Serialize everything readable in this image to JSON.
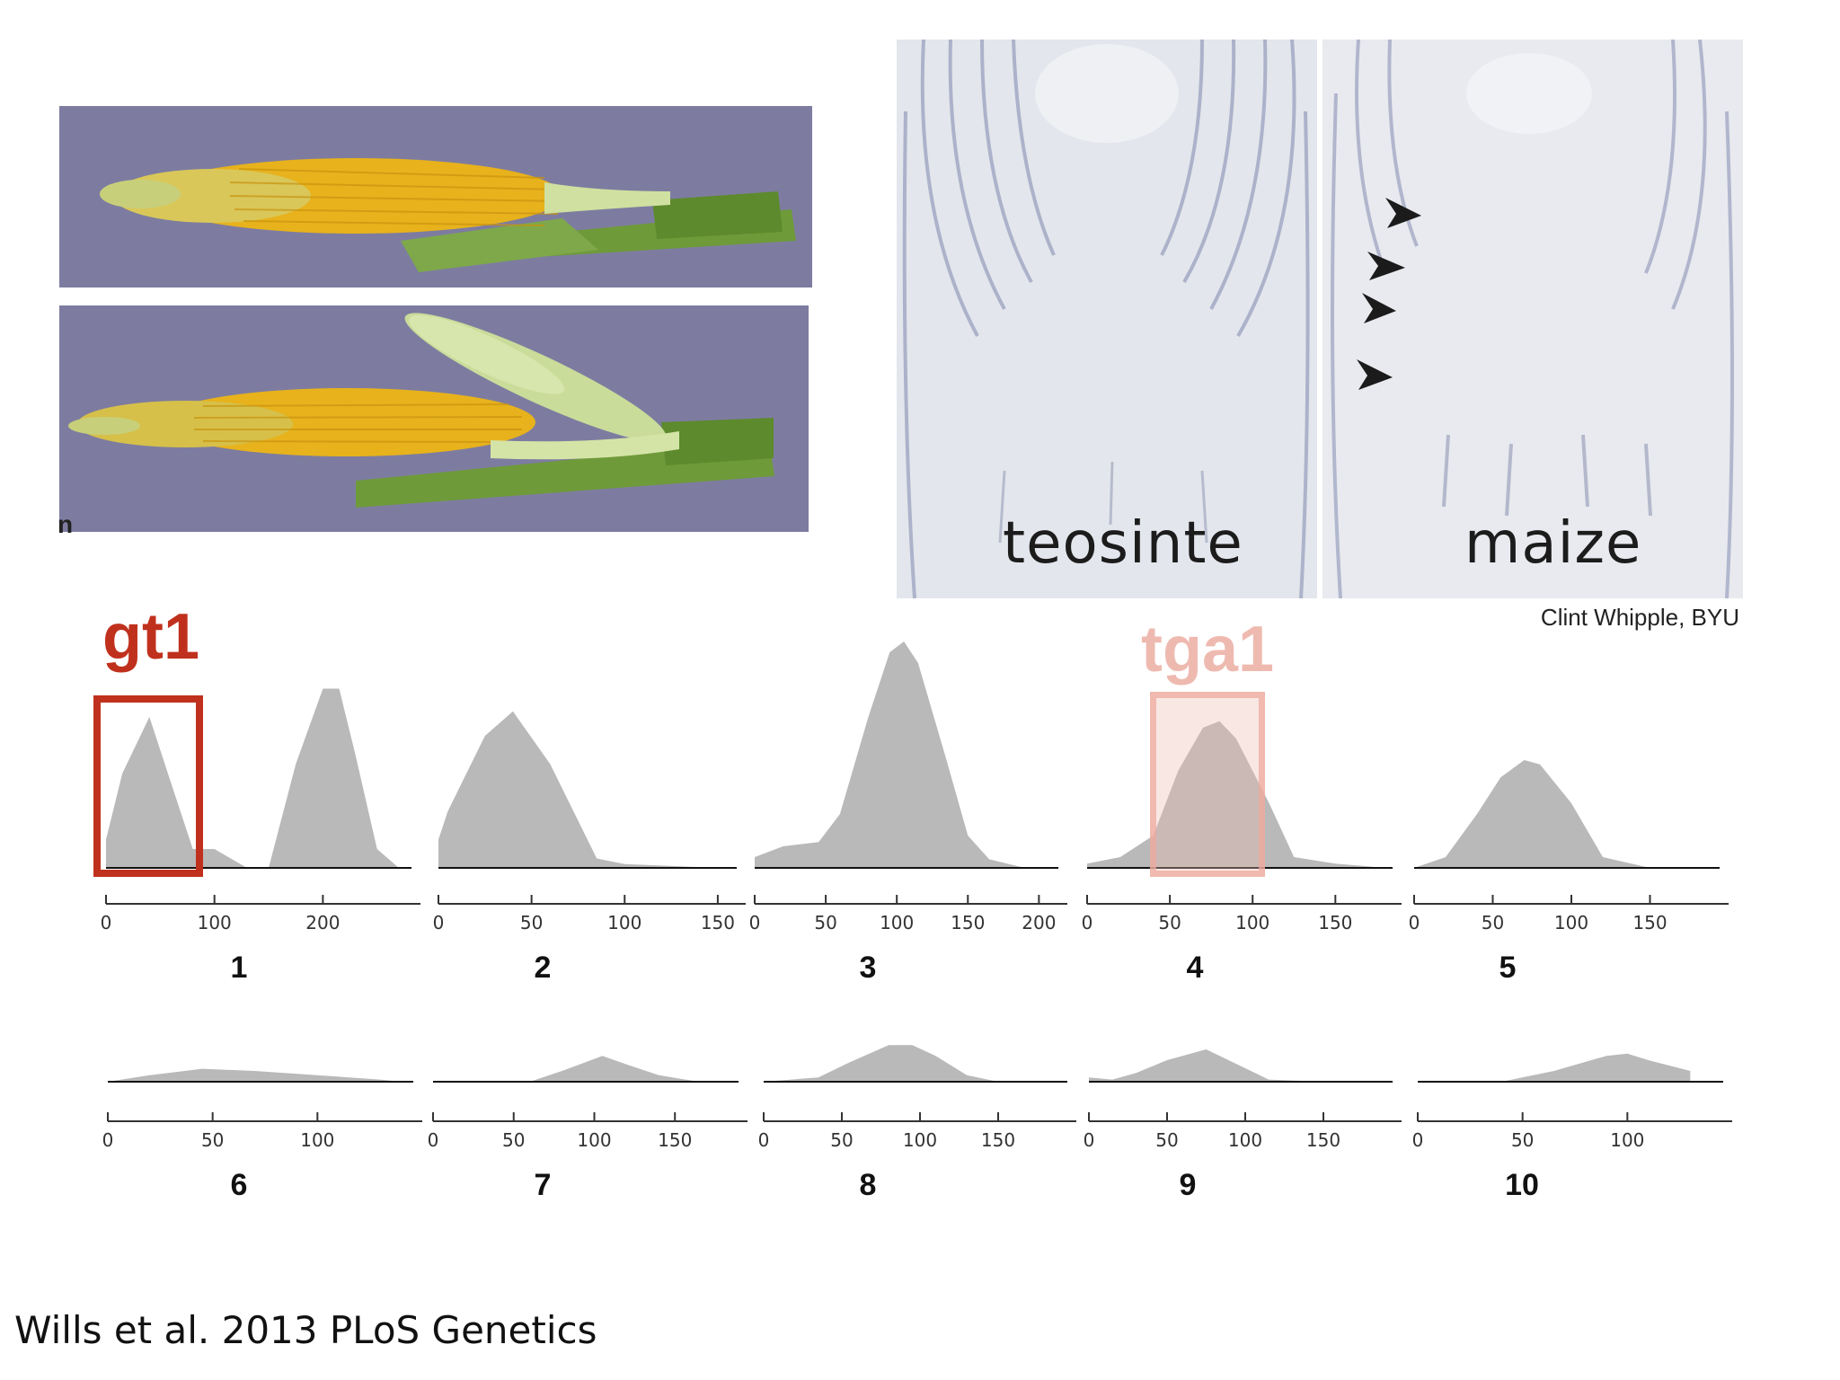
{
  "micrograph_labels": {
    "left": "teosinte",
    "right": "maize"
  },
  "credit": "Clint Whipple, BYU",
  "genes": {
    "gt1": {
      "label": "gt1",
      "color": "#c0311d"
    },
    "tga1": {
      "label": "tga1",
      "color": "#eebab0"
    }
  },
  "panel_edge_letter": "n",
  "citation": "Wills et al. 2013 PLoS Genetics",
  "colors": {
    "peak_fill": "#b9b9b9",
    "ear_background": "#7d7ca0",
    "kernel": "#e7b21c",
    "husk": "#6f9a3a"
  },
  "chart_data": [
    {
      "type": "area",
      "number": "1",
      "x_ticks": [
        "0",
        "100",
        "200"
      ],
      "xlim": [
        0,
        290
      ],
      "x": [
        0,
        15,
        40,
        60,
        80,
        100,
        130,
        150,
        175,
        200,
        215,
        230,
        250,
        270
      ],
      "y": [
        0.15,
        0.5,
        0.8,
        0.45,
        0.1,
        0.1,
        0.0,
        0.0,
        0.55,
        0.95,
        0.95,
        0.6,
        0.1,
        0.0
      ]
    },
    {
      "type": "area",
      "number": "2",
      "x_ticks": [
        "0",
        "50",
        "100",
        "150"
      ],
      "xlim": [
        0,
        165
      ],
      "x": [
        0,
        5,
        25,
        40,
        60,
        85,
        100,
        150
      ],
      "y": [
        0.15,
        0.3,
        0.7,
        0.83,
        0.55,
        0.05,
        0.02,
        0.0
      ]
    },
    {
      "type": "area",
      "number": "3",
      "x_ticks": [
        "0",
        "50",
        "100",
        "150",
        "200"
      ],
      "xlim": [
        0,
        220
      ],
      "x": [
        0,
        20,
        45,
        60,
        80,
        95,
        105,
        115,
        135,
        150,
        165,
        190
      ],
      "y": [
        0.05,
        0.1,
        0.12,
        0.25,
        0.7,
        1.0,
        1.05,
        0.95,
        0.5,
        0.15,
        0.04,
        0.0
      ]
    },
    {
      "type": "area",
      "number": "4",
      "x_ticks": [
        "0",
        "50",
        "100",
        "150"
      ],
      "xlim": [
        0,
        190
      ],
      "x": [
        0,
        20,
        40,
        55,
        70,
        80,
        90,
        110,
        125,
        150,
        180
      ],
      "y": [
        0.02,
        0.05,
        0.15,
        0.45,
        0.65,
        0.68,
        0.6,
        0.3,
        0.05,
        0.02,
        0.0
      ]
    },
    {
      "type": "area",
      "number": "5",
      "x_ticks": [
        "0",
        "50",
        "100",
        "150"
      ],
      "xlim": [
        0,
        200
      ],
      "x": [
        0,
        20,
        40,
        55,
        70,
        80,
        100,
        120,
        150,
        175
      ],
      "y": [
        0.0,
        0.05,
        0.25,
        0.42,
        0.5,
        0.48,
        0.3,
        0.05,
        0.0,
        0.0
      ]
    },
    {
      "type": "area",
      "number": "6",
      "x_ticks": [
        "0",
        "50",
        "100"
      ],
      "xlim": [
        0,
        150
      ],
      "x": [
        0,
        20,
        45,
        70,
        100,
        130,
        140
      ],
      "y": [
        0.0,
        0.03,
        0.06,
        0.05,
        0.03,
        0.01,
        0.0
      ]
    },
    {
      "type": "area",
      "number": "7",
      "x_ticks": [
        "0",
        "50",
        "100",
        "150"
      ],
      "xlim": [
        0,
        195
      ],
      "x": [
        0,
        60,
        80,
        105,
        120,
        140,
        165
      ],
      "y": [
        0.0,
        0.0,
        0.05,
        0.12,
        0.08,
        0.03,
        0.0
      ]
    },
    {
      "type": "area",
      "number": "8",
      "x_ticks": [
        "0",
        "50",
        "100",
        "150"
      ],
      "xlim": [
        0,
        200
      ],
      "x": [
        0,
        35,
        55,
        80,
        95,
        110,
        130,
        150
      ],
      "y": [
        0.0,
        0.02,
        0.09,
        0.17,
        0.17,
        0.12,
        0.03,
        0.0
      ]
    },
    {
      "type": "area",
      "number": "9",
      "x_ticks": [
        "0",
        "50",
        "100",
        "150"
      ],
      "xlim": [
        0,
        200
      ],
      "x": [
        0,
        15,
        30,
        50,
        75,
        95,
        115,
        150
      ],
      "y": [
        0.02,
        0.01,
        0.04,
        0.1,
        0.15,
        0.08,
        0.01,
        0.0
      ]
    },
    {
      "type": "area",
      "number": "10",
      "x_ticks": [
        "0",
        "50",
        "100"
      ],
      "xlim": [
        0,
        150
      ],
      "x": [
        0,
        40,
        65,
        90,
        100,
        110,
        130
      ],
      "y": [
        0.0,
        0.0,
        0.05,
        0.12,
        0.13,
        0.1,
        0.05
      ]
    }
  ]
}
